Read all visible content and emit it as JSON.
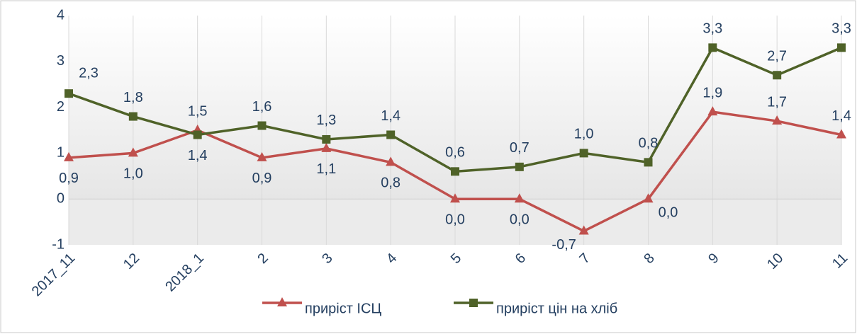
{
  "chart_data": {
    "type": "line",
    "categories": [
      "2017_11",
      "12",
      "2018_1",
      "2",
      "3",
      "4",
      "5",
      "6",
      "7",
      "8",
      "9",
      "10",
      "11"
    ],
    "series": [
      {
        "name": "приріст ІСЦ",
        "color": "#c0504d",
        "marker": "triangle",
        "values": [
          0.9,
          1.0,
          1.5,
          0.9,
          1.1,
          0.8,
          0.0,
          0.0,
          -0.7,
          0.0,
          1.9,
          1.7,
          1.4
        ],
        "value_labels": [
          "0,9",
          "1,0",
          "1,5",
          "0,9",
          "1,1",
          "0,8",
          "0,0",
          "0,0",
          "-0,7",
          "0,0",
          "1,9",
          "1,7",
          "1,4"
        ]
      },
      {
        "name": "приріст цін на хліб",
        "color": "#4f6228",
        "marker": "square",
        "values": [
          2.3,
          1.8,
          1.4,
          1.6,
          1.3,
          1.4,
          0.6,
          0.7,
          1.0,
          0.8,
          3.3,
          2.7,
          3.3
        ],
        "value_labels": [
          "2,3",
          "1,8",
          "1,4",
          "1,6",
          "1,3",
          "1,4",
          "0,6",
          "0,7",
          "1,0",
          "0,8",
          "3,3",
          "2,7",
          "3,3"
        ]
      }
    ],
    "ylim": [
      -1,
      4
    ],
    "yticks": [
      -1,
      0,
      1,
      2,
      3,
      4
    ],
    "grid": true
  }
}
